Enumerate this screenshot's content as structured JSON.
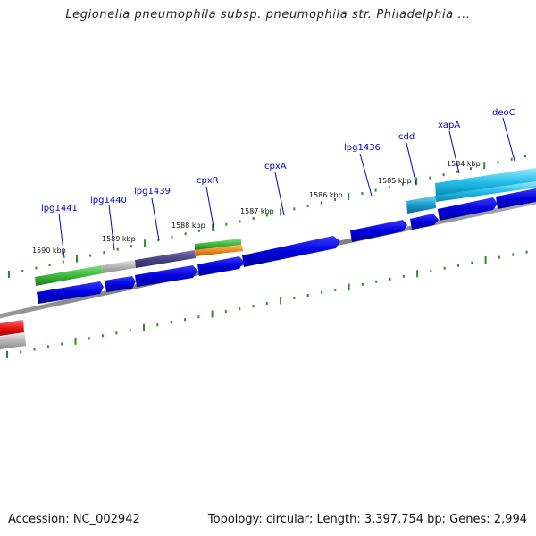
{
  "header": {
    "title": "Legionella pneumophila subsp. pneumophila str. Philadelphia ..."
  },
  "footer": {
    "accession": "Accession: NC_002942",
    "topology": "Topology: circular; Length: 3,397,754 bp; Genes: 2,994"
  },
  "ruler_labels": [
    "1590 kbp",
    "1589 kbp",
    "1588 kbp",
    "1587 kbp",
    "1586 kbp",
    "1585 kbp",
    "1584 kbp"
  ],
  "gene_labels": [
    "lpg1441",
    "lpg1440",
    "lpg1439",
    "cpxR",
    "cpxA",
    "lpg1436",
    "cdd",
    "xapA",
    "deoC"
  ],
  "colors": {
    "backbone": "#7a7a7a",
    "tick": "#2e8b2e",
    "cds": "#0000dd",
    "label": "#0000cc",
    "green": "#3cb83c",
    "grey": "#b0b0b0",
    "purple": "#4a4585",
    "orange": "#f08a1a",
    "cyan": "#22bde8",
    "red": "#ee1111"
  }
}
